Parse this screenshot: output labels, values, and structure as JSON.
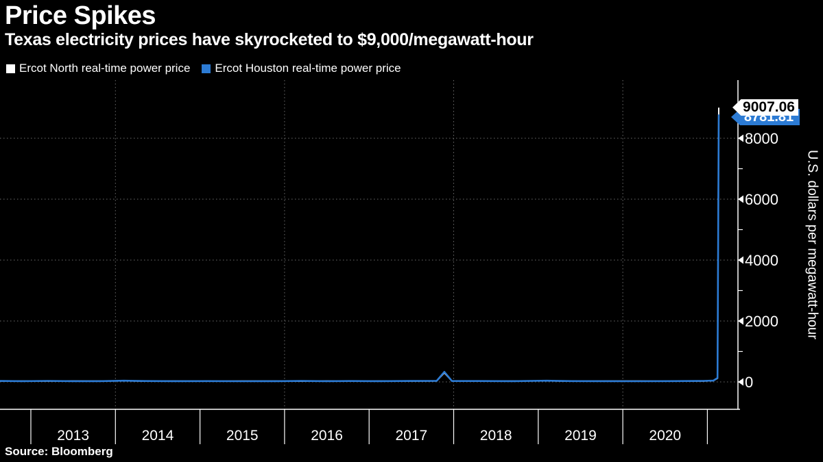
{
  "title": "Price Spikes",
  "subtitle": "Texas electricity prices have skyrocketed to $9,000/megawatt-hour",
  "legend": [
    {
      "label": "Ercot North real-time power price",
      "color": "#ffffff"
    },
    {
      "label": "Ercot Houston real-time power price",
      "color": "#2c7bd4"
    }
  ],
  "y_axis_label": "U.S. dollars per megawatt-hour",
  "source": "Source: Bloomberg",
  "callouts": [
    {
      "value": "9007.06",
      "bg": "#ffffff",
      "fg": "#000000"
    },
    {
      "value": "8781.81",
      "bg": "#2c7bd4",
      "fg": "#ffffff"
    }
  ],
  "colors": {
    "background": "#000000",
    "text": "#ffffff",
    "axis": "#ffffff",
    "grid": "#6e6e6e",
    "houston_blue": "#2c7bd4",
    "north_white": "#ffffff"
  },
  "chart_data": {
    "type": "line",
    "title": "Price Spikes",
    "subtitle": "Texas electricity prices have skyrocketed to $9,000/megawatt-hour",
    "xlabel": "",
    "ylabel": "U.S. dollars per megawatt-hour",
    "x_unit": "year",
    "xlim": [
      2012.63,
      2021.36
    ],
    "ylim": [
      0,
      9200
    ],
    "x_boundary_ticks": [
      2013,
      2014,
      2015,
      2016,
      2017,
      2018,
      2019,
      2020,
      2021
    ],
    "x_interval_labels": [
      "2013",
      "2014",
      "2015",
      "2016",
      "2017",
      "2018",
      "2019",
      "2020"
    ],
    "y_major_ticks": [
      0,
      2000,
      4000,
      6000,
      8000
    ],
    "y_minor_ticks": [
      1000,
      3000,
      5000,
      7000,
      9000
    ],
    "grid_x_years": [
      2014,
      2016,
      2018,
      2020
    ],
    "grid_y_values": [
      0,
      2000,
      4000,
      6000,
      8000
    ],
    "legend_position": "top-left",
    "end_values": {
      "north": 9007.06,
      "houston": 8781.81
    },
    "series": [
      {
        "name": "Ercot North real-time power price",
        "color": "#ffffff",
        "width": 2,
        "points": [
          [
            2012.63,
            26
          ],
          [
            2012.9,
            30
          ],
          [
            2013.2,
            26
          ],
          [
            2013.5,
            31
          ],
          [
            2013.8,
            27
          ],
          [
            2014.1,
            36
          ],
          [
            2014.35,
            24
          ],
          [
            2014.7,
            29
          ],
          [
            2015.1,
            22
          ],
          [
            2015.5,
            27
          ],
          [
            2015.9,
            29
          ],
          [
            2016.2,
            23
          ],
          [
            2016.5,
            31
          ],
          [
            2016.8,
            22
          ],
          [
            2017.1,
            30
          ],
          [
            2017.5,
            26
          ],
          [
            2017.8,
            32
          ],
          [
            2017.89,
            300
          ],
          [
            2017.98,
            28
          ],
          [
            2018.3,
            24
          ],
          [
            2018.7,
            29
          ],
          [
            2019.1,
            35
          ],
          [
            2019.4,
            22
          ],
          [
            2019.8,
            28
          ],
          [
            2020.2,
            26
          ],
          [
            2020.6,
            22
          ],
          [
            2020.95,
            29
          ],
          [
            2021.07,
            38
          ],
          [
            2021.12,
            120
          ],
          [
            2021.135,
            9007.06
          ]
        ]
      },
      {
        "name": "Ercot Houston real-time power price",
        "color": "#2c7bd4",
        "width": 2.6,
        "points": [
          [
            2012.63,
            31
          ],
          [
            2012.9,
            24
          ],
          [
            2013.2,
            33
          ],
          [
            2013.5,
            25
          ],
          [
            2013.8,
            24
          ],
          [
            2014.1,
            41
          ],
          [
            2014.35,
            29
          ],
          [
            2014.7,
            24
          ],
          [
            2015.1,
            27
          ],
          [
            2015.5,
            22
          ],
          [
            2015.9,
            24
          ],
          [
            2016.2,
            31
          ],
          [
            2016.5,
            24
          ],
          [
            2016.8,
            29
          ],
          [
            2017.1,
            25
          ],
          [
            2017.5,
            31
          ],
          [
            2017.8,
            35
          ],
          [
            2017.89,
            330
          ],
          [
            2017.98,
            30
          ],
          [
            2018.3,
            29
          ],
          [
            2018.7,
            24
          ],
          [
            2019.1,
            41
          ],
          [
            2019.4,
            27
          ],
          [
            2019.8,
            24
          ],
          [
            2020.2,
            22
          ],
          [
            2020.6,
            27
          ],
          [
            2020.95,
            33
          ],
          [
            2021.07,
            42
          ],
          [
            2021.12,
            130
          ],
          [
            2021.135,
            8781.81
          ]
        ]
      }
    ]
  }
}
